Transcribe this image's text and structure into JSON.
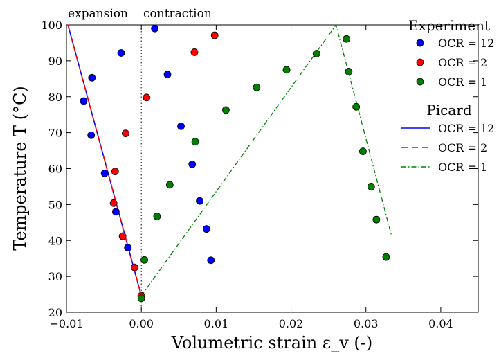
{
  "chart_data": {
    "type": "scatter",
    "xlabel": "Volumetric strain ε_v (-)",
    "ylabel": "Temperature T (°C)",
    "xlim": [
      -0.01,
      0.045
    ],
    "ylim": [
      20,
      100
    ],
    "xticks": [
      "−0.01",
      "0.00",
      "0.01",
      "0.02",
      "0.03",
      "0.04"
    ],
    "xtick_values": [
      -0.01,
      0.0,
      0.01,
      0.02,
      0.03,
      0.04
    ],
    "yticks": [
      "20",
      "30",
      "40",
      "50",
      "60",
      "70",
      "80",
      "90",
      "100"
    ],
    "ytick_values": [
      20,
      30,
      40,
      50,
      60,
      70,
      80,
      90,
      100
    ],
    "grid": false,
    "annotations": {
      "left": "expansion",
      "right": "contraction",
      "divider_x": 0.0
    },
    "legend": {
      "placement": "right",
      "experiment_title": "Experiment",
      "picard_title": "Picard"
    },
    "experiment_series": [
      {
        "name": "OCR = 12",
        "color": "#0000ff",
        "points": [
          [
            0.0,
            24.5
          ],
          [
            -0.0018,
            38
          ],
          [
            -0.0034,
            48
          ],
          [
            -0.0049,
            58.7
          ],
          [
            -0.0067,
            69.3
          ],
          [
            -0.0077,
            78.8
          ],
          [
            -0.0066,
            85.3
          ],
          [
            -0.0027,
            92.2
          ],
          [
            0.0018,
            99
          ],
          [
            0.0035,
            86.2
          ],
          [
            0.0053,
            71.8
          ],
          [
            0.0068,
            61.2
          ],
          [
            0.0078,
            51
          ],
          [
            0.0087,
            43.2
          ],
          [
            0.0093,
            34.5
          ]
        ]
      },
      {
        "name": "OCR = 2",
        "color": "#ff0000",
        "points": [
          [
            0.0,
            24.6
          ],
          [
            -0.0009,
            32.5
          ],
          [
            -0.0025,
            41.2
          ],
          [
            -0.0037,
            50.4
          ],
          [
            -0.0035,
            59.2
          ],
          [
            -0.0021,
            69.8
          ],
          [
            0.0007,
            79.8
          ],
          [
            0.0071,
            92.4
          ],
          [
            0.0098,
            97.1
          ]
        ]
      },
      {
        "name": "OCR = 1",
        "color": "#008000",
        "points": [
          [
            0.0,
            23.9
          ],
          [
            0.0004,
            34.6
          ],
          [
            0.0021,
            46.7
          ],
          [
            0.0038,
            55.5
          ],
          [
            0.0072,
            67.5
          ],
          [
            0.0113,
            76.3
          ],
          [
            0.0154,
            82.6
          ],
          [
            0.0194,
            87.5
          ],
          [
            0.0234,
            92
          ],
          [
            0.0274,
            96.1
          ],
          [
            0.0277,
            87
          ],
          [
            0.0287,
            77.2
          ],
          [
            0.0296,
            64.8
          ],
          [
            0.0307,
            55
          ],
          [
            0.0314,
            45.8
          ],
          [
            0.0327,
            35.4
          ]
        ]
      }
    ],
    "picard_series": [
      {
        "name": "OCR = 12",
        "color": "#0000ff",
        "style": "solid",
        "points": [
          [
            -0.0098,
            100
          ],
          [
            0.0,
            24.6
          ]
        ]
      },
      {
        "name": "OCR = 2",
        "color": "#ff0000",
        "style": "dashed",
        "points": [
          [
            -0.0098,
            100
          ],
          [
            0.0,
            24.6
          ]
        ]
      },
      {
        "name": "OCR = 1",
        "color": "#008000",
        "style": "dashdot",
        "points": [
          [
            0.0,
            24.6
          ],
          [
            0.026,
            100
          ],
          [
            0.0334,
            41.5
          ]
        ]
      }
    ]
  }
}
